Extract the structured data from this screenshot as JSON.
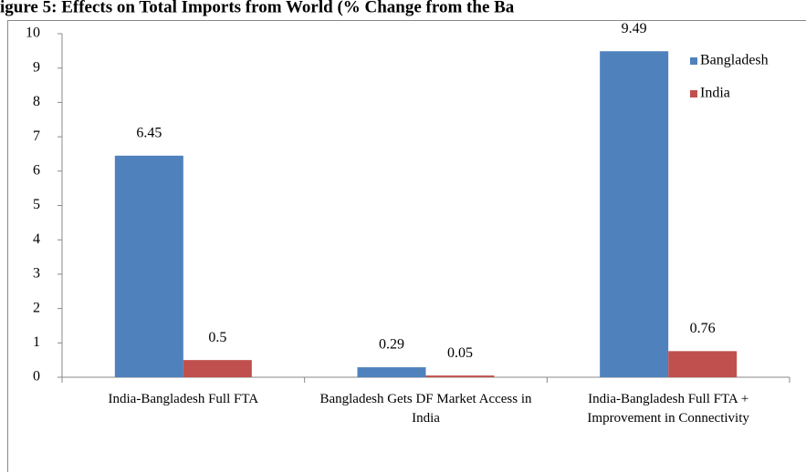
{
  "chart_data": {
    "type": "bar",
    "title": "igure 5: Effects on Total Imports from World (% Change from the Ba",
    "categories": [
      "India-Bangladesh Full FTA",
      "Bangladesh Gets DF Market Access in India",
      "India-Bangladesh Full FTA + Improvement in Connectivity"
    ],
    "series": [
      {
        "name": "Bangladesh",
        "color": "#4f81bd",
        "values": [
          6.45,
          0.29,
          9.49
        ]
      },
      {
        "name": "India",
        "color": "#c0504d",
        "values": [
          0.5,
          0.05,
          0.76
        ]
      }
    ],
    "ylim": [
      0,
      10
    ],
    "yticks": [
      0,
      1,
      2,
      3,
      4,
      5,
      6,
      7,
      8,
      9,
      10
    ],
    "grid": false,
    "legend": "top-right"
  }
}
